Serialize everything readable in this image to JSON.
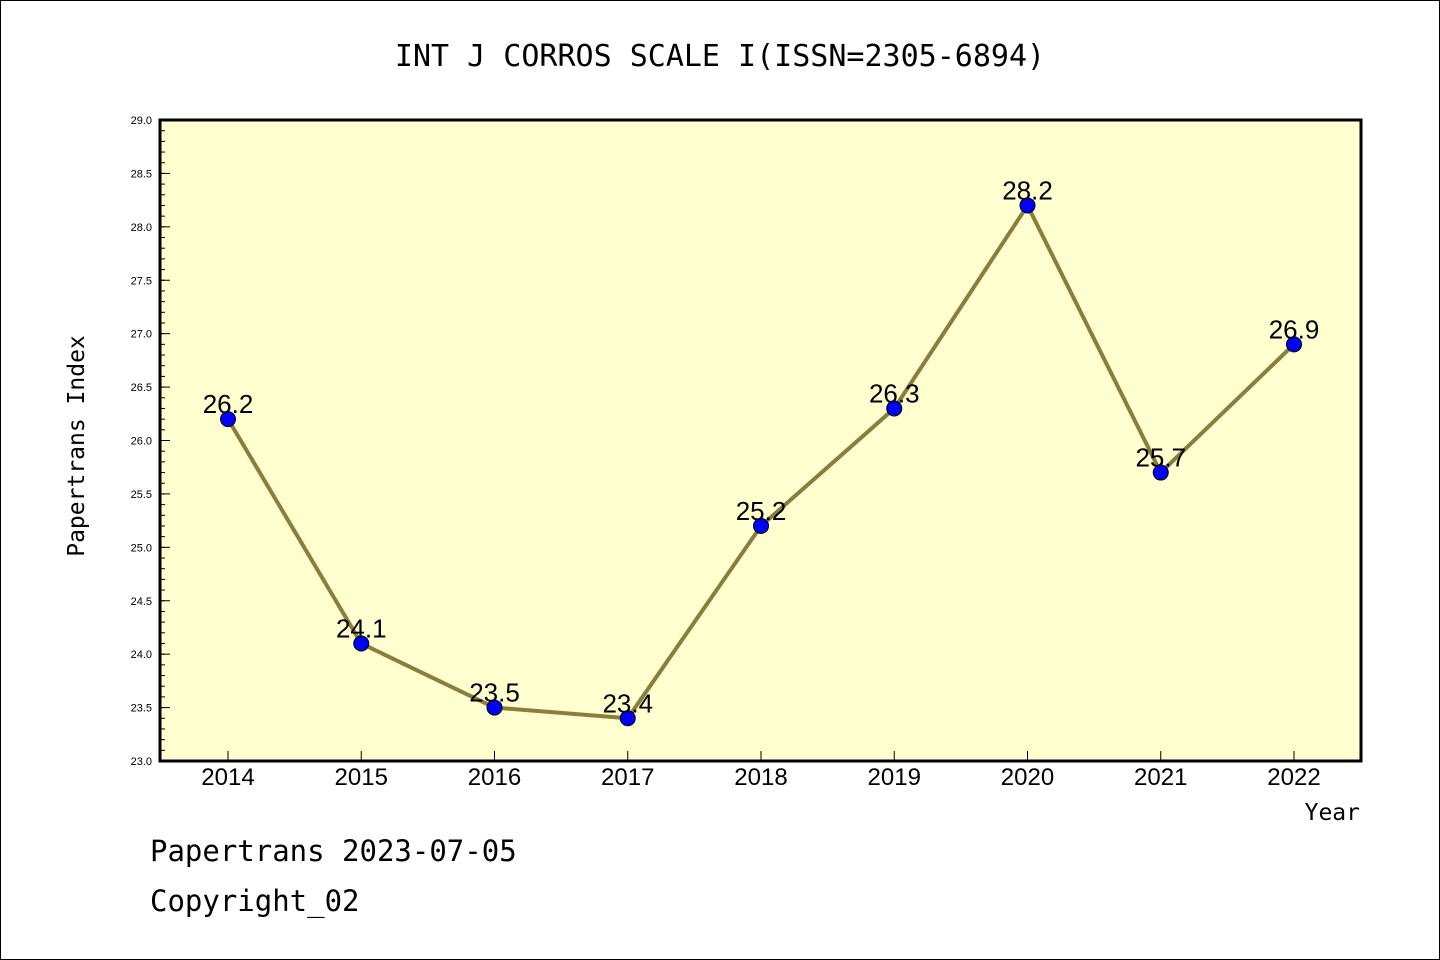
{
  "chart_data": {
    "type": "line",
    "title": "INT J CORROS SCALE I(ISSN=2305-6894)",
    "xlabel": "Year",
    "ylabel": "Papertrans Index",
    "categories": [
      "2014",
      "2015",
      "2016",
      "2017",
      "2018",
      "2019",
      "2020",
      "2021",
      "2022"
    ],
    "values": [
      26.2,
      24.1,
      23.5,
      23.4,
      25.2,
      26.3,
      28.2,
      25.7,
      26.9
    ],
    "data_labels": [
      "26.2",
      "24.1",
      "23.5",
      "23.4",
      "25.2",
      "26.3",
      "28.2",
      "25.7",
      "26.9"
    ],
    "ylim": [
      23.0,
      29.0
    ],
    "yticks": [
      "23.0",
      "23.5",
      "24.0",
      "24.5",
      "25.0",
      "25.5",
      "26.0",
      "26.5",
      "27.0",
      "27.5",
      "28.0",
      "28.5",
      "29.0"
    ],
    "grid": false,
    "line_color": "#8b7d3a",
    "marker_color": "#0000ff",
    "plot_background": "#ffffd0"
  },
  "footer": {
    "line1": "Papertrans 2023-07-05",
    "line2": "Copyright_02"
  }
}
